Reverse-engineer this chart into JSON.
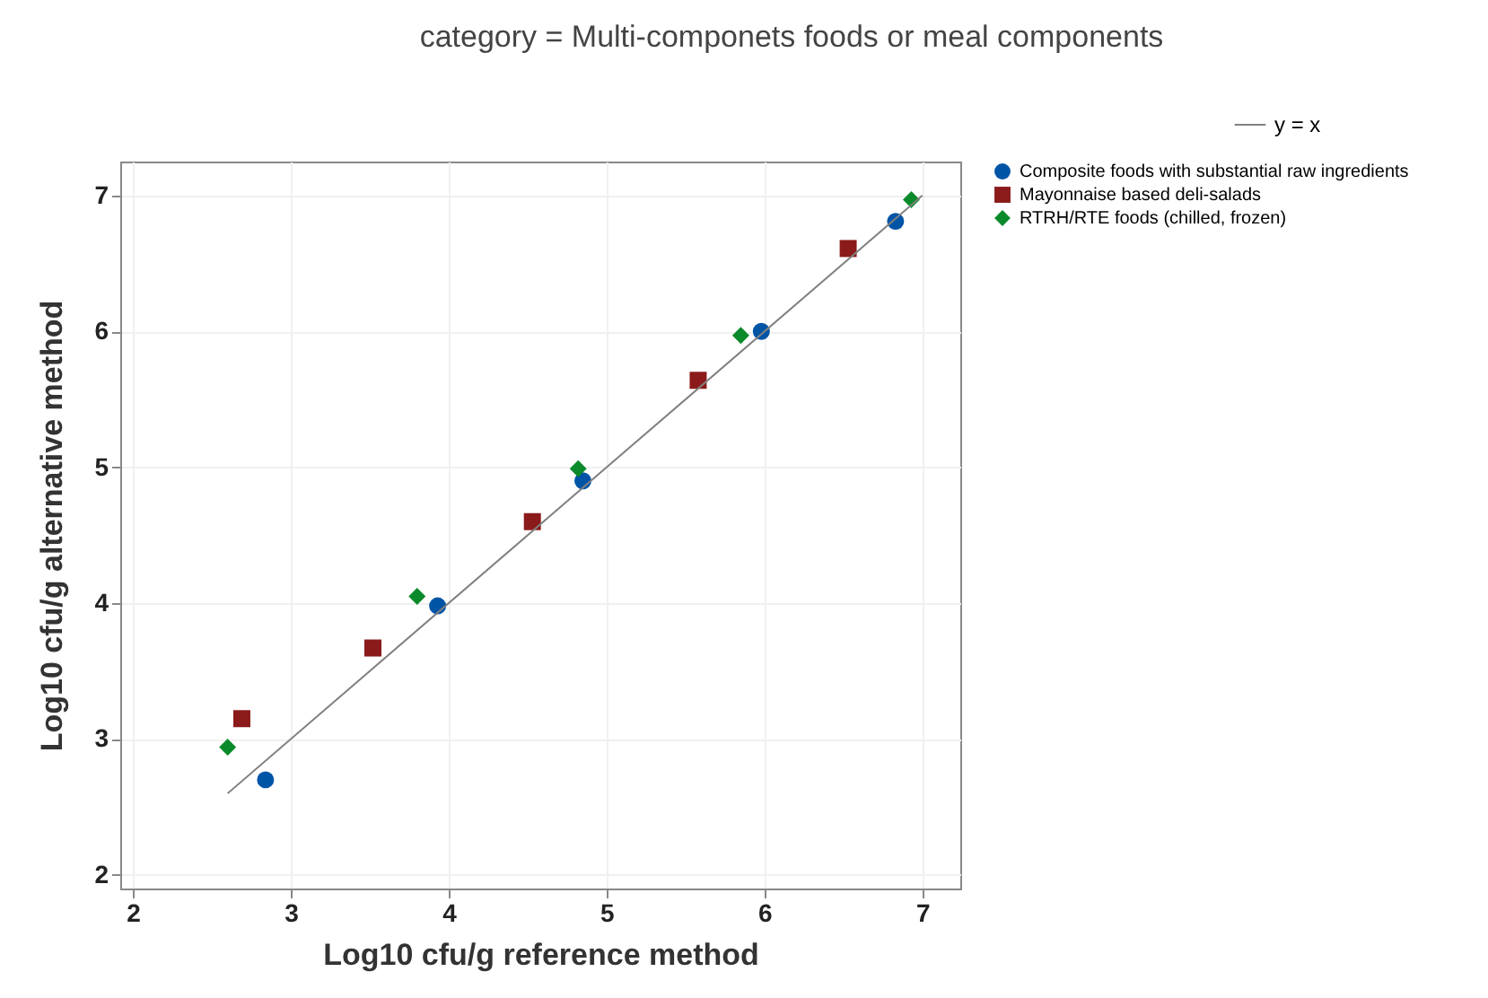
{
  "chart_data": {
    "type": "scatter",
    "title": "category = Multi-componets foods or meal components",
    "xlabel": "Log10 cfu/g reference method",
    "ylabel": "Log10 cfu/g alternative method",
    "xlim": [
      1.92,
      7.24
    ],
    "ylim": [
      1.9,
      7.25
    ],
    "xticks": [
      2,
      3,
      4,
      5,
      6,
      7
    ],
    "yticks": [
      2,
      3,
      4,
      5,
      6,
      7
    ],
    "grid": true,
    "legend": "right",
    "series": [
      {
        "name": "Composite foods with substantial raw ingredients",
        "color": "#0054a6",
        "marker": "circle",
        "x": [
          2.84,
          3.93,
          4.85,
          5.98,
          6.83
        ],
        "values": [
          2.7,
          3.98,
          4.9,
          6.0,
          6.81
        ]
      },
      {
        "name": "Mayonnaise based deli-salads",
        "color": "#8b1a1a",
        "marker": "square",
        "x": [
          2.69,
          3.52,
          4.53,
          5.58,
          6.53
        ],
        "values": [
          3.15,
          3.67,
          4.6,
          5.64,
          6.61
        ]
      },
      {
        "name": "RTRH/RTE foods (chilled, frozen)",
        "color": "#0a8a2a",
        "marker": "diamond",
        "x": [
          2.6,
          3.8,
          4.82,
          5.85,
          6.93
        ],
        "values": [
          2.94,
          4.05,
          4.99,
          5.97,
          6.97
        ]
      },
      {
        "name": "y = x",
        "type": "line",
        "color": "#808080",
        "x": [
          2.6,
          7.0
        ],
        "values": [
          2.6,
          7.0
        ]
      }
    ]
  }
}
